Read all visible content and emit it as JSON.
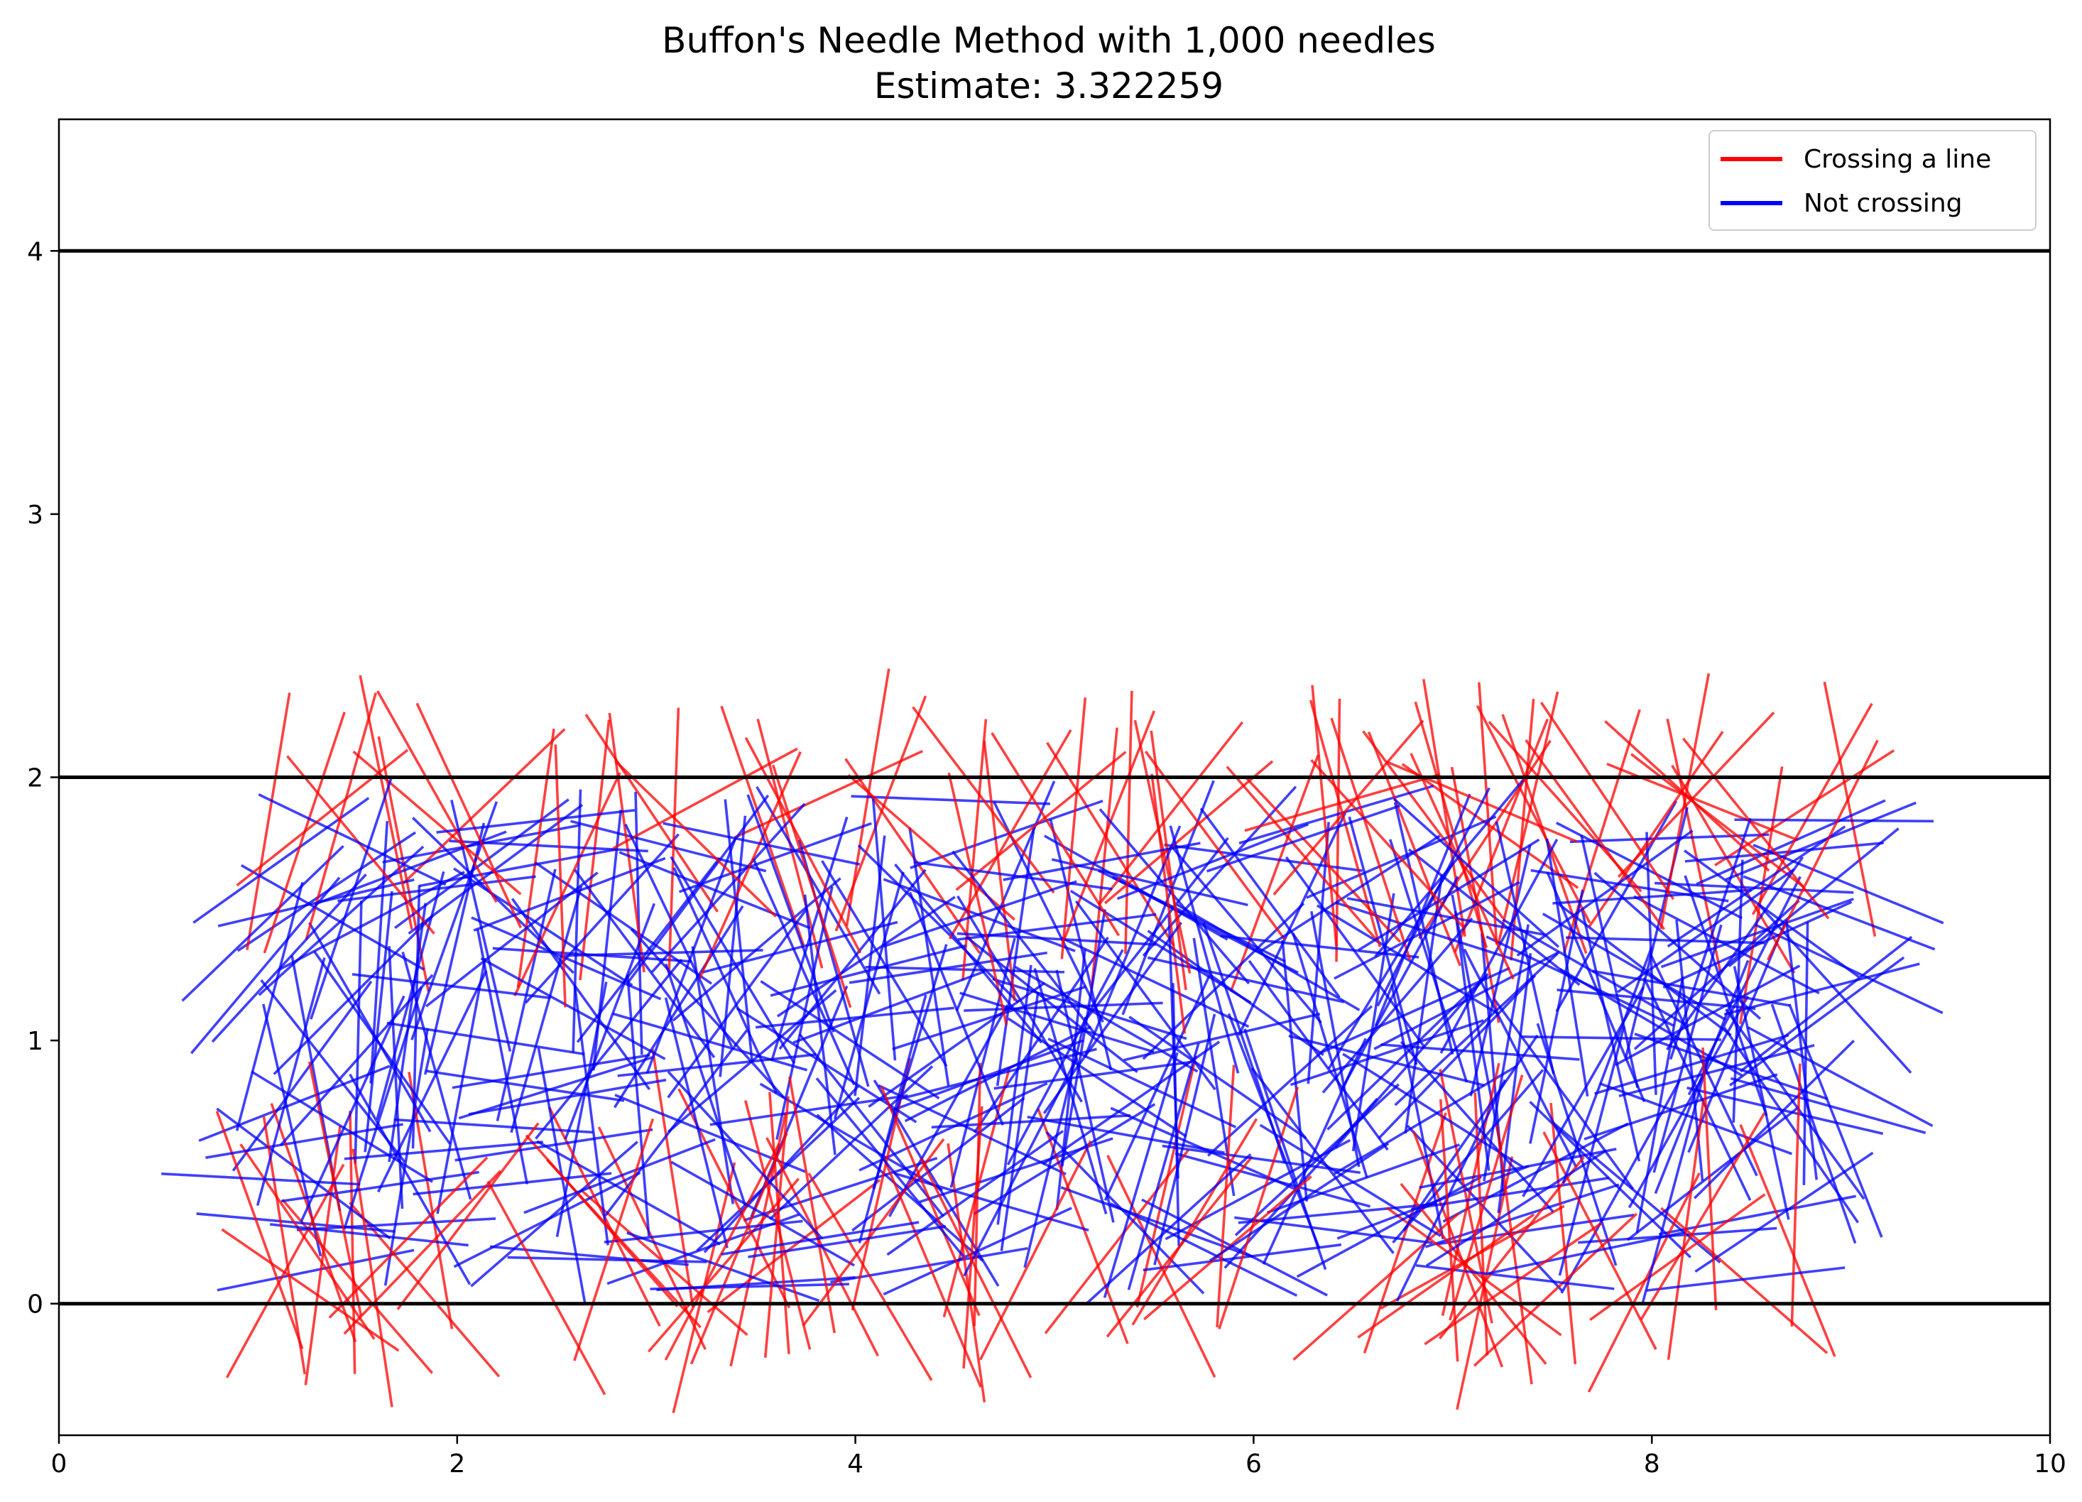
{
  "chart_data": {
    "type": "line",
    "title": "Buffon's Needle Method with 1,000 needles",
    "subtitle": "Estimate: 3.322259",
    "xlabel": "",
    "ylabel": "",
    "xlim": [
      0,
      10
    ],
    "ylim": [
      -0.5,
      4.5
    ],
    "x_ticks": [
      "0",
      "2",
      "4",
      "6",
      "8",
      "10"
    ],
    "y_ticks": [
      "0",
      "1",
      "2",
      "3",
      "4"
    ],
    "grid": false,
    "legend_position": "top-right",
    "parallel_lines_y": [
      0,
      2,
      4
    ],
    "needle_length": 1,
    "series": [
      {
        "name": "Crossing a line",
        "color": "#ff0000"
      },
      {
        "name": "Not crossing",
        "color": "#0000ff"
      }
    ]
  }
}
